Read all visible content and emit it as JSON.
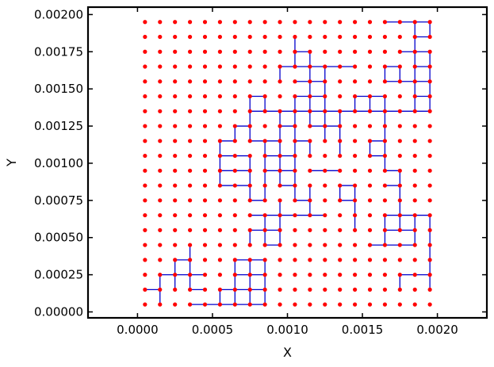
{
  "chart_data": {
    "type": "scatter",
    "title": "",
    "xlabel": "X",
    "ylabel": "Y",
    "xlim": [
      -0.00033,
      0.00233
    ],
    "ylim": [
      -4e-05,
      0.00205
    ],
    "xticks": [
      "0.0000",
      "0.0005",
      "0.0010",
      "0.0015",
      "0.0020"
    ],
    "yticks": [
      "0.00000",
      "0.00025",
      "0.00050",
      "0.00075",
      "0.00100",
      "0.00125",
      "0.00150",
      "0.00175",
      "0.00200"
    ],
    "grid": false,
    "legend": "none",
    "series": [
      {
        "kind": "lattice-points",
        "color": "#ff0000",
        "x_start": 5e-05,
        "x_step": 0.0001,
        "x_count": 20,
        "y_start": 5e-05,
        "y_step": 0.0001,
        "y_count": 20
      },
      {
        "kind": "bonds",
        "color": "#0000cc",
        "segments": [
          [
            [
              0.00015,
              5e-05
            ],
            [
              0.00015,
              0.00025
            ]
          ],
          [
            [
              5e-05,
              0.00015
            ],
            [
              0.00015,
              0.00015
            ]
          ],
          [
            [
              0.00015,
              0.00025
            ],
            [
              0.00045,
              0.00025
            ]
          ],
          [
            [
              0.00025,
              0.00015
            ],
            [
              0.00025,
              0.00035
            ]
          ],
          [
            [
              0.00025,
              0.00035
            ],
            [
              0.00035,
              0.00035
            ]
          ],
          [
            [
              0.00035,
              0.00015
            ],
            [
              0.00035,
              0.00045
            ]
          ],
          [
            [
              0.00035,
              0.00015
            ],
            [
              0.00045,
              0.00015
            ]
          ],
          [
            [
              0.00035,
              5e-05
            ],
            [
              0.00085,
              5e-05
            ]
          ],
          [
            [
              0.00055,
              5e-05
            ],
            [
              0.00055,
              0.00015
            ]
          ],
          [
            [
              0.00055,
              0.00015
            ],
            [
              0.00085,
              0.00015
            ]
          ],
          [
            [
              0.00065,
              5e-05
            ],
            [
              0.00065,
              0.00035
            ]
          ],
          [
            [
              0.00075,
              5e-05
            ],
            [
              0.00075,
              0.00035
            ]
          ],
          [
            [
              0.00065,
              0.00035
            ],
            [
              0.00085,
              0.00035
            ]
          ],
          [
            [
              0.00065,
              0.00025
            ],
            [
              0.00085,
              0.00025
            ]
          ],
          [
            [
              0.00085,
              5e-05
            ],
            [
              0.00085,
              0.00035
            ]
          ],
          [
            [
              0.00075,
              0.00045
            ],
            [
              0.00075,
              0.00055
            ]
          ],
          [
            [
              0.00075,
              0.00055
            ],
            [
              0.00095,
              0.00055
            ]
          ],
          [
            [
              0.00075,
              0.00065
            ],
            [
              0.00125,
              0.00065
            ]
          ],
          [
            [
              0.00085,
              0.00045
            ],
            [
              0.00095,
              0.00045
            ]
          ],
          [
            [
              0.00085,
              0.00045
            ],
            [
              0.00085,
              0.00065
            ]
          ],
          [
            [
              0.00095,
              0.00045
            ],
            [
              0.00095,
              0.00075
            ]
          ],
          [
            [
              0.00075,
              0.00075
            ],
            [
              0.00075,
              0.00105
            ]
          ],
          [
            [
              0.00075,
              0.00075
            ],
            [
              0.00085,
              0.00075
            ]
          ],
          [
            [
              0.00085,
              0.00075
            ],
            [
              0.00085,
              0.00115
            ]
          ],
          [
            [
              0.00055,
              0.00105
            ],
            [
              0.00075,
              0.00105
            ]
          ],
          [
            [
              0.00055,
              0.00095
            ],
            [
              0.00075,
              0.00095
            ]
          ],
          [
            [
              0.00055,
              0.00085
            ],
            [
              0.00075,
              0.00085
            ]
          ],
          [
            [
              0.00055,
              0.00085
            ],
            [
              0.00055,
              0.00115
            ]
          ],
          [
            [
              0.00055,
              0.00115
            ],
            [
              0.00065,
              0.00115
            ]
          ],
          [
            [
              0.00065,
              0.00115
            ],
            [
              0.00065,
              0.00125
            ]
          ],
          [
            [
              0.00065,
              0.00125
            ],
            [
              0.00075,
              0.00125
            ]
          ],
          [
            [
              0.00075,
              0.00115
            ],
            [
              0.00075,
              0.00145
            ]
          ],
          [
            [
              0.00075,
              0.00145
            ],
            [
              0.00085,
              0.00145
            ]
          ],
          [
            [
              0.00085,
              0.00135
            ],
            [
              0.00085,
              0.00145
            ]
          ],
          [
            [
              0.00075,
              0.00135
            ],
            [
              0.00195,
              0.00135
            ]
          ],
          [
            [
              0.00075,
              0.00115
            ],
            [
              0.00095,
              0.00115
            ]
          ],
          [
            [
              0.00085,
              0.00105
            ],
            [
              0.00105,
              0.00105
            ]
          ],
          [
            [
              0.00085,
              0.00095
            ],
            [
              0.00105,
              0.00095
            ]
          ],
          [
            [
              0.00095,
              0.00085
            ],
            [
              0.00105,
              0.00085
            ]
          ],
          [
            [
              0.00095,
              0.00085
            ],
            [
              0.00095,
              0.00135
            ]
          ],
          [
            [
              0.00105,
              0.00075
            ],
            [
              0.00105,
              0.00135
            ]
          ],
          [
            [
              0.00105,
              0.00075
            ],
            [
              0.00115,
              0.00075
            ]
          ],
          [
            [
              0.00115,
              0.00065
            ],
            [
              0.00115,
              0.00085
            ]
          ],
          [
            [
              0.00105,
              0.00115
            ],
            [
              0.00115,
              0.00115
            ]
          ],
          [
            [
              0.00115,
              0.00105
            ],
            [
              0.00115,
              0.00115
            ]
          ],
          [
            [
              0.00095,
              0.00125
            ],
            [
              0.00105,
              0.00125
            ]
          ],
          [
            [
              0.00115,
              0.00095
            ],
            [
              0.00135,
              0.00095
            ]
          ],
          [
            [
              0.00105,
              0.00135
            ],
            [
              0.00105,
              0.00145
            ]
          ],
          [
            [
              0.00105,
              0.00145
            ],
            [
              0.00115,
              0.00145
            ]
          ],
          [
            [
              0.00115,
              0.00125
            ],
            [
              0.00125,
              0.00125
            ]
          ],
          [
            [
              0.00115,
              0.00125
            ],
            [
              0.00115,
              0.00175
            ]
          ],
          [
            [
              0.00125,
              0.00115
            ],
            [
              0.00125,
              0.00165
            ]
          ],
          [
            [
              0.00095,
              0.00165
            ],
            [
              0.00145,
              0.00165
            ]
          ],
          [
            [
              0.00095,
              0.00155
            ],
            [
              0.00095,
              0.00165
            ]
          ],
          [
            [
              0.00105,
              0.00155
            ],
            [
              0.00125,
              0.00155
            ]
          ],
          [
            [
              0.00105,
              0.00165
            ],
            [
              0.00105,
              0.00185
            ]
          ],
          [
            [
              0.00105,
              0.00175
            ],
            [
              0.00115,
              0.00175
            ]
          ],
          [
            [
              0.00115,
              0.00145
            ],
            [
              0.00125,
              0.00145
            ]
          ],
          [
            [
              0.00135,
              0.00105
            ],
            [
              0.00135,
              0.00135
            ]
          ],
          [
            [
              0.00125,
              0.00125
            ],
            [
              0.00135,
              0.00125
            ]
          ],
          [
            [
              0.00135,
              0.00075
            ],
            [
              0.00145,
              0.00075
            ]
          ],
          [
            [
              0.00135,
              0.00075
            ],
            [
              0.00135,
              0.00085
            ]
          ],
          [
            [
              0.00135,
              0.00085
            ],
            [
              0.00145,
              0.00085
            ]
          ],
          [
            [
              0.00145,
              0.00055
            ],
            [
              0.00145,
              0.00085
            ]
          ],
          [
            [
              0.00145,
              0.00135
            ],
            [
              0.00145,
              0.00145
            ]
          ],
          [
            [
              0.00145,
              0.00145
            ],
            [
              0.00165,
              0.00145
            ]
          ],
          [
            [
              0.00155,
              0.00135
            ],
            [
              0.00155,
              0.00145
            ]
          ],
          [
            [
              0.00165,
              0.00095
            ],
            [
              0.00165,
              0.00145
            ]
          ],
          [
            [
              0.00155,
              0.00105
            ],
            [
              0.00165,
              0.00105
            ]
          ],
          [
            [
              0.00155,
              0.00105
            ],
            [
              0.00155,
              0.00115
            ]
          ],
          [
            [
              0.00155,
              0.00115
            ],
            [
              0.00165,
              0.00115
            ]
          ],
          [
            [
              0.00165,
              0.00095
            ],
            [
              0.00175,
              0.00095
            ]
          ],
          [
            [
              0.00165,
              0.00085
            ],
            [
              0.00175,
              0.00085
            ]
          ],
          [
            [
              0.00175,
              0.00055
            ],
            [
              0.00175,
              0.00095
            ]
          ],
          [
            [
              0.00165,
              0.00065
            ],
            [
              0.00195,
              0.00065
            ]
          ],
          [
            [
              0.00165,
              0.00045
            ],
            [
              0.00165,
              0.00065
            ]
          ],
          [
            [
              0.00155,
              0.00045
            ],
            [
              0.00175,
              0.00045
            ]
          ],
          [
            [
              0.00165,
              0.00055
            ],
            [
              0.00185,
              0.00055
            ]
          ],
          [
            [
              0.00185,
              0.00045
            ],
            [
              0.00185,
              0.00065
            ]
          ],
          [
            [
              0.00175,
              0.00045
            ],
            [
              0.00185,
              0.00045
            ]
          ],
          [
            [
              0.00195,
              0.00015
            ],
            [
              0.00195,
              0.00065
            ]
          ],
          [
            [
              0.00175,
              0.00025
            ],
            [
              0.00195,
              0.00025
            ]
          ],
          [
            [
              0.00175,
              0.00015
            ],
            [
              0.00175,
              0.00025
            ]
          ],
          [
            [
              0.00165,
              0.00155
            ],
            [
              0.00185,
              0.00155
            ]
          ],
          [
            [
              0.00165,
              0.00155
            ],
            [
              0.00165,
              0.00165
            ]
          ],
          [
            [
              0.00165,
              0.00165
            ],
            [
              0.00175,
              0.00165
            ]
          ],
          [
            [
              0.00175,
              0.00155
            ],
            [
              0.00175,
              0.00165
            ]
          ],
          [
            [
              0.00185,
              0.00135
            ],
            [
              0.00185,
              0.00175
            ]
          ],
          [
            [
              0.00185,
              0.00145
            ],
            [
              0.00195,
              0.00145
            ]
          ],
          [
            [
              0.00185,
              0.00165
            ],
            [
              0.00195,
              0.00165
            ]
          ],
          [
            [
              0.00195,
              0.00135
            ],
            [
              0.00195,
              0.00175
            ]
          ],
          [
            [
              0.00175,
              0.00175
            ],
            [
              0.00195,
              0.00175
            ]
          ],
          [
            [
              0.00185,
              0.00175
            ],
            [
              0.00185,
              0.00195
            ]
          ],
          [
            [
              0.00185,
              0.00185
            ],
            [
              0.00195,
              0.00185
            ]
          ],
          [
            [
              0.00165,
              0.00195
            ],
            [
              0.00195,
              0.00195
            ]
          ],
          [
            [
              0.00195,
              0.00185
            ],
            [
              0.00195,
              0.00195
            ]
          ],
          [
            [
              0.00185,
              0.00155
            ],
            [
              0.00195,
              0.00155
            ]
          ]
        ]
      }
    ]
  }
}
